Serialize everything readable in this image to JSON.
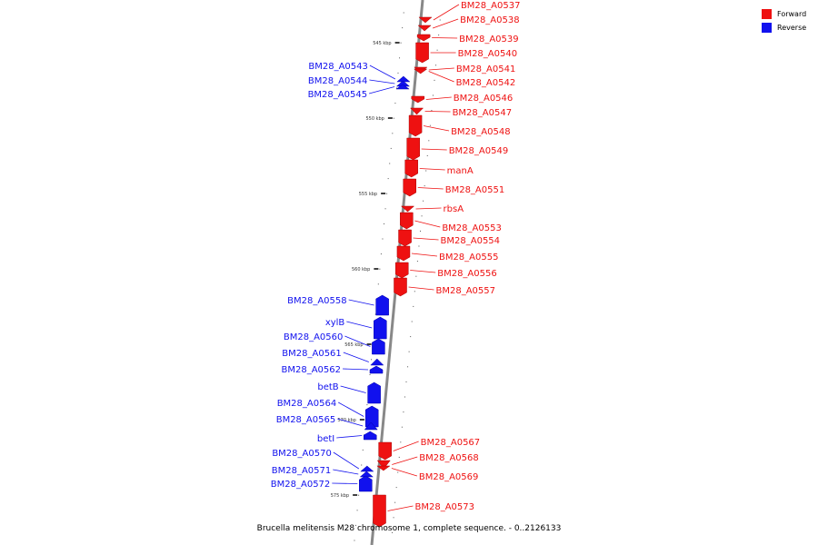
{
  "caption": "Brucella melitensis M28 chromosome 1, complete sequence. - 0..2126133",
  "legend": {
    "forward": {
      "label": "Forward",
      "color": "#ee1111"
    },
    "reverse": {
      "label": "Reverse",
      "color": "#1111ee"
    }
  },
  "colors": {
    "forward": "#ee1111",
    "reverse": "#1111ee",
    "backbone": "#888888"
  },
  "ticks": [
    {
      "label": "545 kbp"
    },
    {
      "label": "550 kbp"
    },
    {
      "label": "555 kbp"
    },
    {
      "label": "560 kbp"
    },
    {
      "label": "565 kbp"
    },
    {
      "label": "570 kbp"
    },
    {
      "label": "575 kbp"
    }
  ],
  "genes": [
    {
      "name": "BM28_A0537",
      "strand": "forward"
    },
    {
      "name": "BM28_A0538",
      "strand": "forward"
    },
    {
      "name": "BM28_A0539",
      "strand": "forward"
    },
    {
      "name": "BM28_A0540",
      "strand": "forward"
    },
    {
      "name": "BM28_A0541",
      "strand": "forward"
    },
    {
      "name": "BM28_A0542",
      "strand": "forward"
    },
    {
      "name": "BM28_A0543",
      "strand": "reverse"
    },
    {
      "name": "BM28_A0544",
      "strand": "reverse"
    },
    {
      "name": "BM28_A0545",
      "strand": "reverse"
    },
    {
      "name": "BM28_A0546",
      "strand": "forward"
    },
    {
      "name": "BM28_A0547",
      "strand": "forward"
    },
    {
      "name": "BM28_A0548",
      "strand": "forward"
    },
    {
      "name": "BM28_A0549",
      "strand": "forward"
    },
    {
      "name": "manA",
      "strand": "forward"
    },
    {
      "name": "BM28_A0551",
      "strand": "forward"
    },
    {
      "name": "rbsA",
      "strand": "forward"
    },
    {
      "name": "BM28_A0553",
      "strand": "forward"
    },
    {
      "name": "BM28_A0554",
      "strand": "forward"
    },
    {
      "name": "BM28_A0555",
      "strand": "forward"
    },
    {
      "name": "BM28_A0556",
      "strand": "forward"
    },
    {
      "name": "BM28_A0557",
      "strand": "forward"
    },
    {
      "name": "BM28_A0558",
      "strand": "reverse"
    },
    {
      "name": "xylB",
      "strand": "reverse"
    },
    {
      "name": "BM28_A0560",
      "strand": "reverse"
    },
    {
      "name": "BM28_A0561",
      "strand": "reverse"
    },
    {
      "name": "BM28_A0562",
      "strand": "reverse"
    },
    {
      "name": "betB",
      "strand": "reverse"
    },
    {
      "name": "BM28_A0564",
      "strand": "reverse"
    },
    {
      "name": "BM28_A0565",
      "strand": "reverse"
    },
    {
      "name": "betI",
      "strand": "reverse"
    },
    {
      "name": "BM28_A0567",
      "strand": "forward"
    },
    {
      "name": "BM28_A0568",
      "strand": "forward"
    },
    {
      "name": "BM28_A0569",
      "strand": "forward"
    },
    {
      "name": "BM28_A0570",
      "strand": "reverse"
    },
    {
      "name": "BM28_A0571",
      "strand": "reverse"
    },
    {
      "name": "BM28_A0572",
      "strand": "reverse"
    },
    {
      "name": "BM28_A0573",
      "strand": "forward"
    }
  ]
}
